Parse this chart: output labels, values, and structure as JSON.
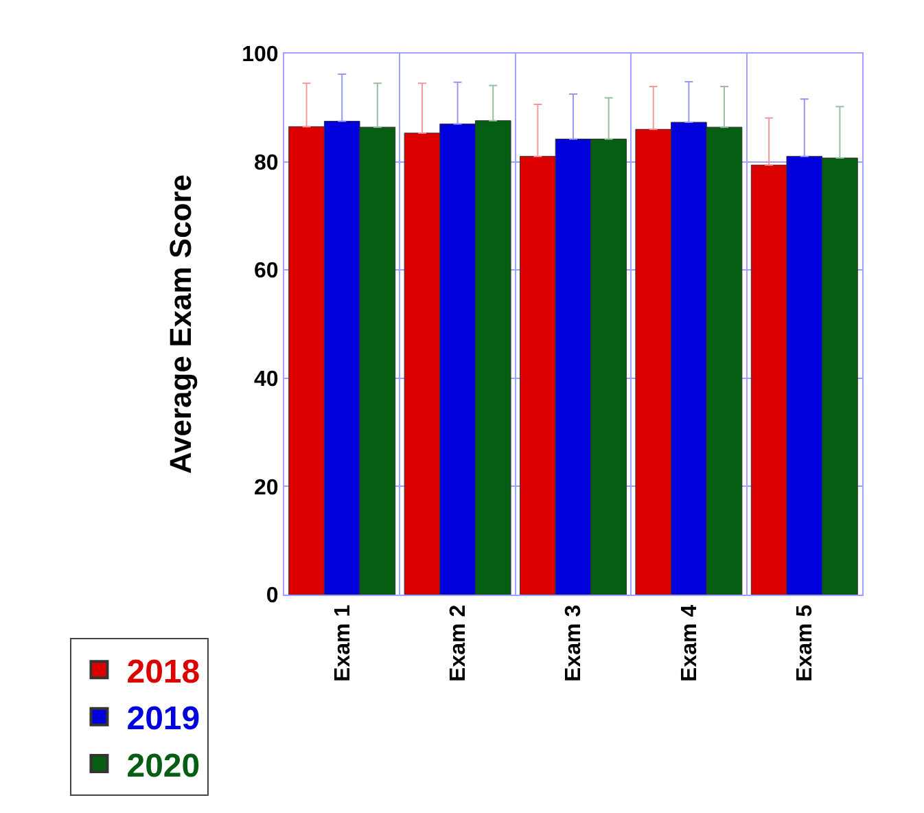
{
  "chart_data": {
    "type": "bar",
    "ylabel": "Average Exam Score",
    "categories": [
      "Exam 1",
      "Exam 2",
      "Exam 3",
      "Exam 4",
      "Exam 5"
    ],
    "series": [
      {
        "name": "2018",
        "color": "#dd0000",
        "values": [
          86.5,
          85.3,
          81.0,
          86.0,
          79.4
        ],
        "errors": [
          [
            86.5,
            94.5
          ],
          [
            85.3,
            94.5
          ],
          [
            81.0,
            90.6
          ],
          [
            86.0,
            93.9
          ],
          [
            79.4,
            88.1
          ]
        ]
      },
      {
        "name": "2019",
        "color": "#0000dd",
        "values": [
          87.5,
          87.0,
          84.2,
          87.3,
          81.0
        ],
        "errors": [
          [
            87.5,
            96.2
          ],
          [
            87.0,
            94.7
          ],
          [
            84.2,
            92.5
          ],
          [
            87.3,
            94.8
          ],
          [
            81.0,
            91.6
          ]
        ]
      },
      {
        "name": "2020",
        "color": "#055e12",
        "values": [
          86.4,
          87.6,
          84.2,
          86.4,
          80.7
        ],
        "errors": [
          [
            86.4,
            94.5
          ],
          [
            87.6,
            94.1
          ],
          [
            84.2,
            91.8
          ],
          [
            86.4,
            93.9
          ],
          [
            80.7,
            90.2
          ]
        ]
      }
    ],
    "ylim": [
      0,
      100
    ],
    "yticks": [
      0,
      20,
      40,
      60,
      80,
      100
    ],
    "grid": true,
    "legend": "bottom left"
  }
}
